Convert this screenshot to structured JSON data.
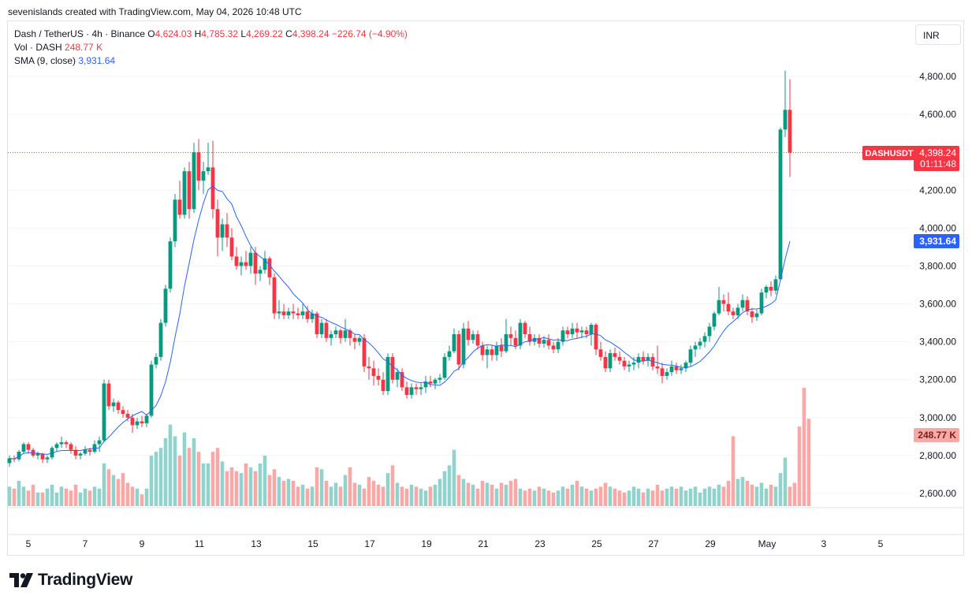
{
  "credit": "sevenislands created with TradingView.com, May 04, 2026 10:48 UTC",
  "legend": {
    "symbol": "Dash / TetherUS · 4h · Binance",
    "o_label": "O",
    "o_value": "4,624.03",
    "h_label": "H",
    "h_value": "4,785.32",
    "l_label": "L",
    "l_value": "4,269.22",
    "c_label": "C",
    "c_value": "4,398.24",
    "change": "−226.74 (−4.90%)",
    "vol_label": "Vol · DASH",
    "vol_value": "248.77 K",
    "sma_label": "SMA (9, close)",
    "sma_value": "3,931.64"
  },
  "currency_button": "INR",
  "price_tag": {
    "symbol": "DASHUSDT",
    "price": "4,398.24",
    "countdown": "01:11:48",
    "color": "#f23645"
  },
  "sma_tag": {
    "value": "3,931.64",
    "color": "#2962ff"
  },
  "volume_tag": {
    "value": "248.77 K",
    "color": "#f7a9a7"
  },
  "logo_text": "TradingView",
  "colors": {
    "up": "#089981",
    "down": "#f23645",
    "sma": "#2962ff",
    "vol_up": "#92d2cc",
    "vol_down": "#f7a9a7"
  },
  "chart_data": {
    "type": "candlestick",
    "interval": "4h",
    "y_ticks": [
      "4,800.00",
      "4,600.00",
      "4,200.00",
      "4,000.00",
      "3,800.00",
      "3,600.00",
      "3,400.00",
      "3,200.00",
      "3,000.00",
      "2,800.00",
      "2,600.00"
    ],
    "y_tick_values": [
      4800,
      4600,
      4200,
      4000,
      3800,
      3600,
      3400,
      3200,
      3000,
      2800,
      2600
    ],
    "x_ticks": [
      "5",
      "7",
      "9",
      "11",
      "13",
      "15",
      "17",
      "19",
      "21",
      "23",
      "25",
      "27",
      "29",
      "May",
      "3",
      "5"
    ],
    "ylim": [
      2530,
      4880
    ],
    "candles": [
      [
        2760,
        2800,
        2740,
        2785
      ],
      [
        2785,
        2800,
        2765,
        2780
      ],
      [
        2780,
        2830,
        2770,
        2820
      ],
      [
        2820,
        2870,
        2810,
        2860
      ],
      [
        2860,
        2870,
        2810,
        2830
      ],
      [
        2830,
        2840,
        2790,
        2800
      ],
      [
        2800,
        2820,
        2780,
        2810
      ],
      [
        2810,
        2815,
        2760,
        2780
      ],
      [
        2780,
        2800,
        2760,
        2790
      ],
      [
        2790,
        2850,
        2780,
        2840
      ],
      [
        2840,
        2870,
        2820,
        2860
      ],
      [
        2860,
        2900,
        2840,
        2870
      ],
      [
        2870,
        2880,
        2840,
        2860
      ],
      [
        2860,
        2870,
        2810,
        2830
      ],
      [
        2830,
        2850,
        2780,
        2800
      ],
      [
        2800,
        2820,
        2780,
        2810
      ],
      [
        2810,
        2850,
        2800,
        2830
      ],
      [
        2830,
        2840,
        2800,
        2820
      ],
      [
        2820,
        2880,
        2810,
        2860
      ],
      [
        2860,
        2900,
        2820,
        2880
      ],
      [
        2880,
        3200,
        2870,
        3180
      ],
      [
        3180,
        3200,
        3040,
        3060
      ],
      [
        3060,
        3100,
        3030,
        3080
      ],
      [
        3080,
        3090,
        3020,
        3040
      ],
      [
        3040,
        3060,
        3000,
        3020
      ],
      [
        3020,
        3040,
        2980,
        3000
      ],
      [
        3000,
        3020,
        2920,
        2960
      ],
      [
        2960,
        3000,
        2940,
        2980
      ],
      [
        2980,
        3010,
        2950,
        2970
      ],
      [
        2970,
        3020,
        2950,
        3010
      ],
      [
        3010,
        3300,
        3000,
        3280
      ],
      [
        3280,
        3340,
        3260,
        3320
      ],
      [
        3320,
        3520,
        3300,
        3500
      ],
      [
        3500,
        3700,
        3480,
        3680
      ],
      [
        3680,
        3950,
        3660,
        3930
      ],
      [
        3930,
        4180,
        3900,
        4150
      ],
      [
        4150,
        4250,
        4050,
        4070
      ],
      [
        4070,
        4320,
        4050,
        4300
      ],
      [
        4300,
        4350,
        4050,
        4100
      ],
      [
        4100,
        4450,
        4080,
        4400
      ],
      [
        4400,
        4470,
        4200,
        4250
      ],
      [
        4250,
        4350,
        4180,
        4300
      ],
      [
        4300,
        4450,
        4280,
        4320
      ],
      [
        4320,
        4460,
        4050,
        4100
      ],
      [
        4100,
        4150,
        3850,
        3950
      ],
      [
        3950,
        4050,
        3880,
        4020
      ],
      [
        4020,
        4080,
        3900,
        3950
      ],
      [
        3950,
        4000,
        3830,
        3850
      ],
      [
        3850,
        3900,
        3780,
        3800
      ],
      [
        3800,
        3850,
        3750,
        3820
      ],
      [
        3820,
        3880,
        3780,
        3800
      ],
      [
        3800,
        3900,
        3760,
        3870
      ],
      [
        3870,
        3900,
        3700,
        3760
      ],
      [
        3760,
        3800,
        3720,
        3780
      ],
      [
        3780,
        3880,
        3760,
        3840
      ],
      [
        3840,
        3850,
        3700,
        3740
      ],
      [
        3740,
        3760,
        3520,
        3550
      ],
      [
        3550,
        3620,
        3520,
        3560
      ],
      [
        3560,
        3600,
        3520,
        3540
      ],
      [
        3540,
        3580,
        3520,
        3560
      ],
      [
        3560,
        3600,
        3520,
        3550
      ],
      [
        3550,
        3580,
        3520,
        3540
      ],
      [
        3540,
        3600,
        3520,
        3560
      ],
      [
        3560,
        3590,
        3500,
        3520
      ],
      [
        3520,
        3570,
        3500,
        3550
      ],
      [
        3550,
        3560,
        3420,
        3440
      ],
      [
        3440,
        3520,
        3420,
        3500
      ],
      [
        3500,
        3520,
        3400,
        3420
      ],
      [
        3420,
        3460,
        3380,
        3440
      ],
      [
        3440,
        3480,
        3420,
        3460
      ],
      [
        3460,
        3470,
        3390,
        3420
      ],
      [
        3420,
        3520,
        3400,
        3460
      ],
      [
        3460,
        3470,
        3380,
        3420
      ],
      [
        3420,
        3440,
        3360,
        3400
      ],
      [
        3400,
        3430,
        3380,
        3420
      ],
      [
        3420,
        3440,
        3240,
        3270
      ],
      [
        3270,
        3320,
        3200,
        3260
      ],
      [
        3260,
        3300,
        3170,
        3220
      ],
      [
        3220,
        3260,
        3170,
        3200
      ],
      [
        3200,
        3240,
        3120,
        3140
      ],
      [
        3140,
        3340,
        3120,
        3320
      ],
      [
        3320,
        3340,
        3180,
        3200
      ],
      [
        3200,
        3260,
        3160,
        3240
      ],
      [
        3240,
        3260,
        3140,
        3160
      ],
      [
        3160,
        3190,
        3100,
        3120
      ],
      [
        3120,
        3180,
        3100,
        3160
      ],
      [
        3160,
        3180,
        3120,
        3150
      ],
      [
        3150,
        3180,
        3120,
        3160
      ],
      [
        3160,
        3220,
        3130,
        3190
      ],
      [
        3190,
        3220,
        3160,
        3180
      ],
      [
        3180,
        3210,
        3150,
        3200
      ],
      [
        3200,
        3230,
        3180,
        3210
      ],
      [
        3210,
        3340,
        3200,
        3320
      ],
      [
        3320,
        3380,
        3300,
        3350
      ],
      [
        3350,
        3470,
        3340,
        3440
      ],
      [
        3440,
        3460,
        3250,
        3280
      ],
      [
        3280,
        3500,
        3260,
        3470
      ],
      [
        3470,
        3510,
        3380,
        3410
      ],
      [
        3410,
        3460,
        3390,
        3440
      ],
      [
        3440,
        3460,
        3360,
        3380
      ],
      [
        3380,
        3400,
        3300,
        3330
      ],
      [
        3330,
        3380,
        3260,
        3360
      ],
      [
        3360,
        3380,
        3300,
        3330
      ],
      [
        3330,
        3400,
        3300,
        3380
      ],
      [
        3380,
        3420,
        3320,
        3350
      ],
      [
        3350,
        3520,
        3340,
        3440
      ],
      [
        3440,
        3480,
        3380,
        3420
      ],
      [
        3420,
        3460,
        3360,
        3380
      ],
      [
        3380,
        3520,
        3360,
        3500
      ],
      [
        3500,
        3510,
        3420,
        3440
      ],
      [
        3440,
        3480,
        3380,
        3400
      ],
      [
        3400,
        3440,
        3380,
        3420
      ],
      [
        3420,
        3440,
        3370,
        3390
      ],
      [
        3390,
        3430,
        3370,
        3410
      ],
      [
        3410,
        3440,
        3360,
        3380
      ],
      [
        3380,
        3400,
        3340,
        3360
      ],
      [
        3360,
        3420,
        3340,
        3400
      ],
      [
        3400,
        3480,
        3380,
        3460
      ],
      [
        3460,
        3480,
        3420,
        3440
      ],
      [
        3440,
        3500,
        3420,
        3470
      ],
      [
        3470,
        3500,
        3420,
        3450
      ],
      [
        3450,
        3480,
        3420,
        3460
      ],
      [
        3460,
        3480,
        3420,
        3440
      ],
      [
        3440,
        3500,
        3380,
        3490
      ],
      [
        3490,
        3500,
        3330,
        3360
      ],
      [
        3360,
        3400,
        3300,
        3320
      ],
      [
        3320,
        3350,
        3240,
        3260
      ],
      [
        3260,
        3360,
        3240,
        3340
      ],
      [
        3340,
        3370,
        3300,
        3320
      ],
      [
        3320,
        3350,
        3280,
        3300
      ],
      [
        3300,
        3320,
        3250,
        3270
      ],
      [
        3270,
        3300,
        3240,
        3280
      ],
      [
        3280,
        3320,
        3250,
        3290
      ],
      [
        3290,
        3340,
        3260,
        3320
      ],
      [
        3320,
        3350,
        3280,
        3300
      ],
      [
        3300,
        3340,
        3270,
        3320
      ],
      [
        3320,
        3340,
        3250,
        3270
      ],
      [
        3270,
        3380,
        3230,
        3260
      ],
      [
        3260,
        3290,
        3180,
        3220
      ],
      [
        3220,
        3260,
        3200,
        3240
      ],
      [
        3240,
        3300,
        3220,
        3270
      ],
      [
        3270,
        3290,
        3230,
        3250
      ],
      [
        3250,
        3280,
        3230,
        3260
      ],
      [
        3260,
        3300,
        3240,
        3290
      ],
      [
        3290,
        3380,
        3270,
        3360
      ],
      [
        3360,
        3400,
        3320,
        3380
      ],
      [
        3380,
        3420,
        3360,
        3400
      ],
      [
        3400,
        3450,
        3370,
        3430
      ],
      [
        3430,
        3500,
        3400,
        3480
      ],
      [
        3480,
        3560,
        3460,
        3550
      ],
      [
        3550,
        3690,
        3540,
        3620
      ],
      [
        3620,
        3650,
        3560,
        3600
      ],
      [
        3600,
        3660,
        3540,
        3560
      ],
      [
        3560,
        3580,
        3520,
        3540
      ],
      [
        3540,
        3600,
        3520,
        3580
      ],
      [
        3580,
        3650,
        3560,
        3620
      ],
      [
        3620,
        3640,
        3540,
        3560
      ],
      [
        3560,
        3580,
        3500,
        3530
      ],
      [
        3530,
        3570,
        3510,
        3550
      ],
      [
        3550,
        3680,
        3540,
        3660
      ],
      [
        3660,
        3700,
        3630,
        3690
      ],
      [
        3690,
        3720,
        3640,
        3670
      ],
      [
        3670,
        3750,
        3650,
        3730
      ],
      [
        3730,
        4530,
        3720,
        4520
      ],
      [
        4520,
        4830,
        4480,
        4624
      ],
      [
        4624,
        4785,
        4269,
        4398
      ]
    ],
    "volume": [
      10,
      9,
      13,
      10,
      8,
      11,
      7,
      7,
      9,
      11,
      7,
      10,
      9,
      8,
      11,
      7,
      9,
      8,
      10,
      9,
      22,
      19,
      16,
      14,
      17,
      12,
      10,
      9,
      6,
      9,
      26,
      28,
      30,
      35,
      42,
      36,
      26,
      38,
      30,
      35,
      28,
      22,
      22,
      28,
      30,
      23,
      18,
      20,
      18,
      17,
      22,
      20,
      18,
      22,
      26,
      16,
      19,
      15,
      13,
      14,
      13,
      10,
      11,
      9,
      10,
      20,
      19,
      13,
      10,
      12,
      10,
      16,
      20,
      12,
      11,
      9,
      15,
      13,
      11,
      10,
      17,
      21,
      12,
      10,
      9,
      11,
      10,
      9,
      8,
      10,
      11,
      14,
      18,
      21,
      29,
      16,
      14,
      12,
      11,
      9,
      13,
      12,
      11,
      9,
      12,
      11,
      13,
      14,
      9,
      8,
      9,
      8,
      10,
      9,
      8,
      7,
      8,
      10,
      9,
      11,
      13,
      10,
      9,
      8,
      9,
      10,
      12,
      10,
      9,
      8,
      7,
      8,
      10,
      9,
      7,
      9,
      8,
      11,
      8,
      9,
      10,
      9,
      10,
      8,
      9,
      10,
      7,
      9,
      10,
      9,
      11,
      10,
      13,
      36,
      14,
      15,
      13,
      11,
      10,
      12,
      9,
      11,
      10,
      17,
      25,
      10,
      12,
      41,
      61,
      45
    ]
  }
}
